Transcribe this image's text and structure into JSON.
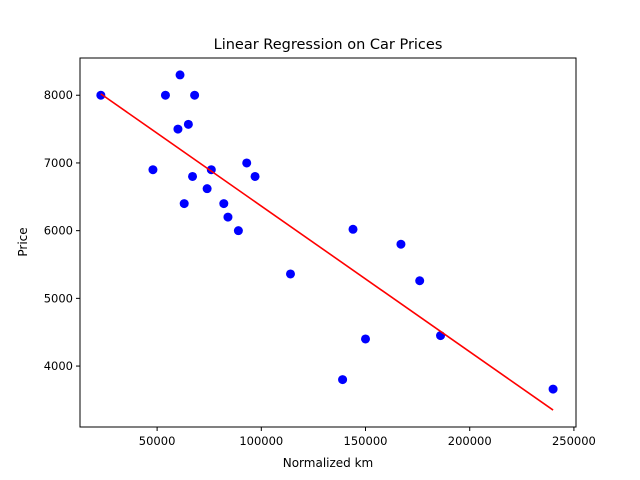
{
  "chart_data": {
    "type": "scatter",
    "title": "Linear Regression on Car Prices",
    "xlabel": "Normalized km",
    "ylabel": "Price",
    "xlim": [
      13000,
      251000
    ],
    "ylim": [
      3100,
      8550
    ],
    "xticks": [
      50000,
      100000,
      150000,
      200000,
      250000
    ],
    "xtick_labels": [
      "50000",
      "100000",
      "150000",
      "200000",
      "250000"
    ],
    "yticks": [
      4000,
      5000,
      6000,
      7000,
      8000
    ],
    "ytick_labels": [
      "4000",
      "5000",
      "6000",
      "7000",
      "8000"
    ],
    "grid": false,
    "points_color": "#0000ff",
    "line_color": "#ff0000",
    "points": [
      {
        "x": 23000,
        "y": 8000
      },
      {
        "x": 54000,
        "y": 8000
      },
      {
        "x": 61000,
        "y": 8300
      },
      {
        "x": 68000,
        "y": 8000
      },
      {
        "x": 60000,
        "y": 7500
      },
      {
        "x": 65000,
        "y": 7570
      },
      {
        "x": 48000,
        "y": 6900
      },
      {
        "x": 67000,
        "y": 6800
      },
      {
        "x": 76000,
        "y": 6900
      },
      {
        "x": 74000,
        "y": 6620
      },
      {
        "x": 63000,
        "y": 6400
      },
      {
        "x": 82000,
        "y": 6400
      },
      {
        "x": 84000,
        "y": 6200
      },
      {
        "x": 89000,
        "y": 6000
      },
      {
        "x": 93000,
        "y": 7000
      },
      {
        "x": 97000,
        "y": 6800
      },
      {
        "x": 114000,
        "y": 5360
      },
      {
        "x": 144000,
        "y": 6020
      },
      {
        "x": 167000,
        "y": 5800
      },
      {
        "x": 176000,
        "y": 5260
      },
      {
        "x": 139000,
        "y": 3800
      },
      {
        "x": 150000,
        "y": 4400
      },
      {
        "x": 186000,
        "y": 4450
      },
      {
        "x": 240000,
        "y": 3660
      }
    ],
    "regression_line": [
      {
        "x": 23000,
        "y": 8020
      },
      {
        "x": 240000,
        "y": 3350
      }
    ]
  }
}
